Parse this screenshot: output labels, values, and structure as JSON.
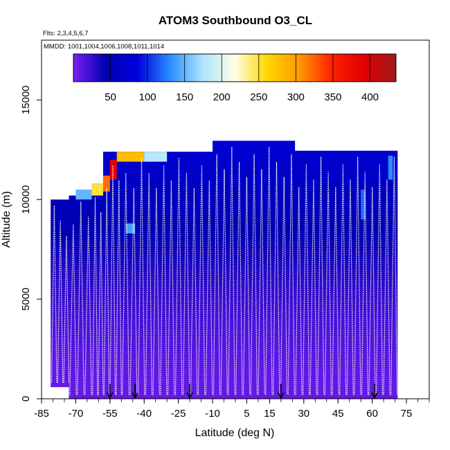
{
  "chart_data": {
    "type": "heatmap",
    "title": "ATOM3 Southbound O3_CL",
    "annotations": {
      "flights": "Flts: 2,3,4,5,6,7",
      "dates": "MMDD: 1001,1004,1006,1008,1011,1014"
    },
    "xlabel": "Latitude (deg N)",
    "ylabel": "Altitude (m)",
    "xlim": [
      -85,
      85
    ],
    "ylim": [
      0,
      18000
    ],
    "x_ticks": [
      -85,
      -70,
      -55,
      -40,
      -25,
      -10,
      5,
      15,
      30,
      45,
      60,
      75
    ],
    "y_ticks": [
      0,
      5000,
      10000,
      15000
    ],
    "colorbar": {
      "min": 0,
      "max": 435,
      "ticks": [
        50,
        100,
        150,
        200,
        250,
        300,
        350,
        400
      ],
      "stops": [
        "#7b1ff2",
        "#0000b0",
        "#0000dd",
        "#2a8dff",
        "#aee4ff",
        "#ffffe6",
        "#ffd700",
        "#ff9900",
        "#ff2200",
        "#e00000",
        "#9e1a1a"
      ]
    },
    "columns": [
      {
        "x0": -81,
        "x1": -73,
        "top": 10000,
        "bottom": 600
      },
      {
        "x0": -73,
        "x1": -63,
        "top": 10200,
        "bottom": 0
      },
      {
        "x0": -63,
        "x1": -58,
        "top": 10800,
        "bottom": 0
      },
      {
        "x0": -58,
        "x1": -50,
        "top": 12400,
        "bottom": 0
      },
      {
        "x0": -50,
        "x1": -43,
        "top": 12400,
        "bottom": 0
      },
      {
        "x0": -43,
        "x1": -30,
        "top": 12400,
        "bottom": 0
      },
      {
        "x0": -30,
        "x1": -10,
        "top": 12400,
        "bottom": 0
      },
      {
        "x0": -10,
        "x1": 26,
        "top": 12950,
        "bottom": 0
      },
      {
        "x0": 26,
        "x1": 55,
        "top": 12450,
        "bottom": 0
      },
      {
        "x0": 55,
        "x1": 71,
        "top": 12450,
        "bottom": 0
      }
    ],
    "high_ozone_patches": [
      {
        "x0": -52,
        "x1": -40,
        "y0": 11900,
        "y1": 12400,
        "value": 280
      },
      {
        "x0": -40,
        "x1": -30,
        "y0": 11900,
        "y1": 12400,
        "value": 180
      },
      {
        "x0": -55,
        "x1": -52,
        "y0": 11000,
        "y1": 12000,
        "value": 390
      },
      {
        "x0": -58,
        "x1": -55,
        "y0": 10400,
        "y1": 11200,
        "value": 320
      },
      {
        "x0": -63,
        "x1": -58,
        "y0": 10200,
        "y1": 10800,
        "value": 250
      },
      {
        "x0": -70,
        "x1": -63,
        "y0": 10000,
        "y1": 10500,
        "value": 150
      },
      {
        "x0": -48,
        "x1": -44,
        "y0": 8300,
        "y1": 8800,
        "value": 140
      },
      {
        "x0": 55,
        "x1": 57,
        "y0": 9000,
        "y1": 10500,
        "value": 120
      },
      {
        "x0": 67,
        "x1": 69,
        "y0": 11000,
        "y1": 12200,
        "value": 130
      }
    ],
    "profile_tops": [
      12400,
      12600,
      12950,
      12450,
      12450
    ],
    "flight_start_markers": [
      -55,
      -44,
      -20,
      20,
      61
    ]
  }
}
